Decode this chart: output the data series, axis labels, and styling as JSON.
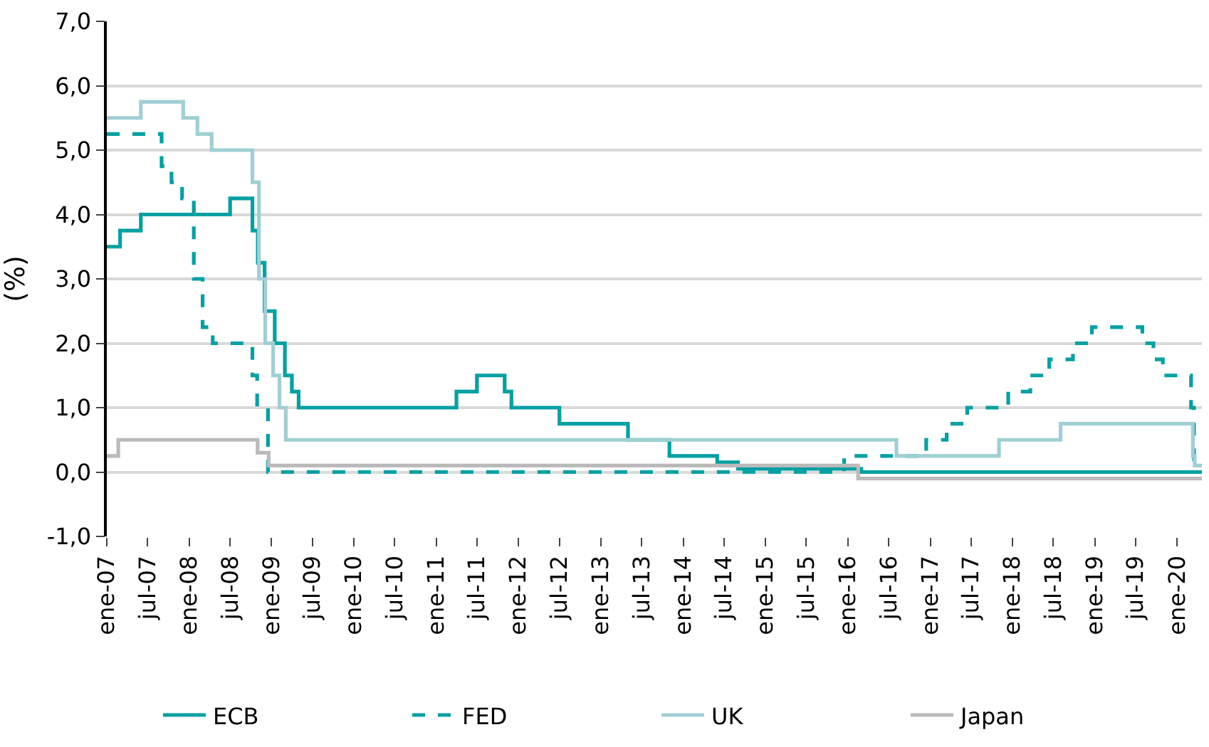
{
  "chart_data": {
    "type": "step",
    "ylabel": "(%)",
    "ylim": [
      -1,
      7
    ],
    "yticks": [
      {
        "value": -1,
        "label": "-1,0"
      },
      {
        "value": 0,
        "label": "0,0"
      },
      {
        "value": 1,
        "label": "1,0"
      },
      {
        "value": 2,
        "label": "2,0"
      },
      {
        "value": 3,
        "label": "3,0"
      },
      {
        "value": 4,
        "label": "4,0"
      },
      {
        "value": 5,
        "label": "5,0"
      },
      {
        "value": 6,
        "label": "6,0"
      },
      {
        "value": 7,
        "label": "7,0"
      }
    ],
    "xlim": [
      "2007-01-01",
      "2020-04-20"
    ],
    "xticks": [
      {
        "value": "2007-01-01",
        "label": "ene-07"
      },
      {
        "value": "2007-07-01",
        "label": "jul-07"
      },
      {
        "value": "2008-01-01",
        "label": "ene-08"
      },
      {
        "value": "2008-07-01",
        "label": "jul-08"
      },
      {
        "value": "2009-01-01",
        "label": "ene-09"
      },
      {
        "value": "2009-07-01",
        "label": "jul-09"
      },
      {
        "value": "2010-01-01",
        "label": "ene-10"
      },
      {
        "value": "2010-07-01",
        "label": "jul-10"
      },
      {
        "value": "2011-01-01",
        "label": "ene-11"
      },
      {
        "value": "2011-07-01",
        "label": "jul-11"
      },
      {
        "value": "2012-01-01",
        "label": "ene-12"
      },
      {
        "value": "2012-07-01",
        "label": "jul-12"
      },
      {
        "value": "2013-01-01",
        "label": "ene-13"
      },
      {
        "value": "2013-07-01",
        "label": "jul-13"
      },
      {
        "value": "2014-01-01",
        "label": "ene-14"
      },
      {
        "value": "2014-07-01",
        "label": "jul-14"
      },
      {
        "value": "2015-01-01",
        "label": "ene-15"
      },
      {
        "value": "2015-07-01",
        "label": "jul-15"
      },
      {
        "value": "2016-01-01",
        "label": "ene-16"
      },
      {
        "value": "2016-07-01",
        "label": "jul-16"
      },
      {
        "value": "2017-01-01",
        "label": "ene-17"
      },
      {
        "value": "2017-07-01",
        "label": "jul-17"
      },
      {
        "value": "2018-01-01",
        "label": "ene-18"
      },
      {
        "value": "2018-07-01",
        "label": "jul-18"
      },
      {
        "value": "2019-01-01",
        "label": "ene-19"
      },
      {
        "value": "2019-07-01",
        "label": "jul-19"
      },
      {
        "value": "2020-01-01",
        "label": "ene-20"
      }
    ],
    "grid": "y",
    "legend": "bottom",
    "series": [
      {
        "name": "ECB",
        "color": "#00a0a3",
        "line_style": "solid",
        "x": [
          "2007-01-01",
          "2007-03-01",
          "2007-06-01",
          "2008-07-01",
          "2008-10-08",
          "2008-11-01",
          "2008-12-01",
          "2009-01-15",
          "2009-03-01",
          "2009-04-01",
          "2009-05-01",
          "2011-04-01",
          "2011-07-01",
          "2011-11-01",
          "2011-12-01",
          "2012-07-01",
          "2013-05-01",
          "2013-11-01",
          "2014-06-01",
          "2014-09-01",
          "2016-03-01",
          "2020-04-20"
        ],
        "values": [
          3.5,
          3.75,
          4.0,
          4.25,
          3.75,
          3.25,
          2.5,
          2.0,
          1.5,
          1.25,
          1.0,
          1.25,
          1.5,
          1.25,
          1.0,
          0.75,
          0.5,
          0.25,
          0.15,
          0.05,
          0.0,
          0.0
        ]
      },
      {
        "name": "FED",
        "color": "#00a0a3",
        "line_style": "dashed",
        "x": [
          "2007-01-01",
          "2007-09-01",
          "2007-10-15",
          "2007-12-01",
          "2008-01-22",
          "2008-03-01",
          "2008-04-15",
          "2008-10-08",
          "2008-10-29",
          "2008-12-16",
          "2015-12-16",
          "2016-12-14",
          "2017-03-15",
          "2017-06-14",
          "2017-12-13",
          "2018-03-21",
          "2018-06-13",
          "2018-09-26",
          "2018-12-19",
          "2019-07-31",
          "2019-09-18",
          "2019-10-30",
          "2020-03-03",
          "2020-03-16",
          "2020-04-20"
        ],
        "values": [
          5.25,
          4.75,
          4.5,
          4.25,
          3.0,
          2.25,
          2.0,
          1.5,
          1.0,
          0.0,
          0.25,
          0.5,
          0.75,
          1.0,
          1.25,
          1.5,
          1.75,
          2.0,
          2.25,
          2.0,
          1.75,
          1.5,
          1.0,
          0.0,
          0.0
        ]
      },
      {
        "name": "UK",
        "color": "#9fcfd4",
        "line_style": "solid",
        "x": [
          "2007-01-01",
          "2007-06-01",
          "2007-12-06",
          "2008-02-07",
          "2008-04-10",
          "2008-10-08",
          "2008-11-06",
          "2008-12-04",
          "2009-01-08",
          "2009-02-05",
          "2009-03-05",
          "2016-08-04",
          "2017-11-02",
          "2018-08-02",
          "2020-03-11",
          "2020-03-19",
          "2020-04-20"
        ],
        "values": [
          5.5,
          5.75,
          5.5,
          5.25,
          5.0,
          4.5,
          3.0,
          2.0,
          1.5,
          1.0,
          0.5,
          0.25,
          0.5,
          0.75,
          0.25,
          0.1,
          0.1
        ]
      },
      {
        "name": "Japan",
        "color": "#bababa",
        "line_style": "solid",
        "x": [
          "2007-01-01",
          "2007-02-21",
          "2008-10-31",
          "2008-12-19",
          "2016-02-16",
          "2020-04-20"
        ],
        "values": [
          0.25,
          0.5,
          0.3,
          0.1,
          -0.1,
          -0.1
        ]
      }
    ]
  }
}
